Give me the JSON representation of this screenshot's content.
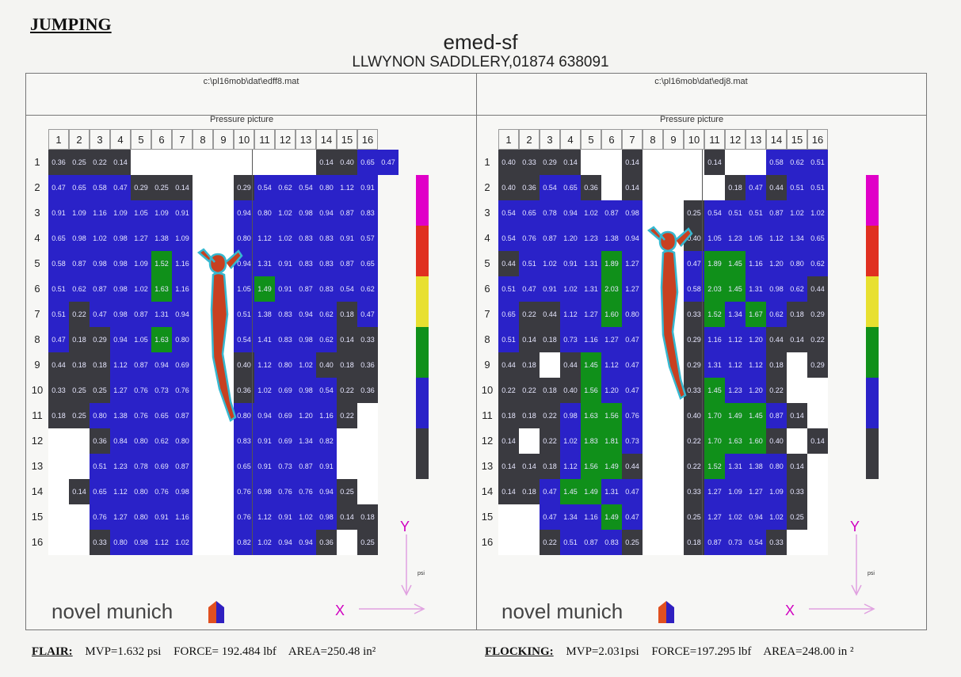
{
  "heading": "JUMPING",
  "title": "emed-sf",
  "subtitle": "LLWYNON SADDLERY,01874 638091",
  "panels": [
    {
      "path": "c:\\pl16mob\\dat\\edff8.mat",
      "pp_label": "Pressure picture",
      "brand": "novel munich",
      "x_label": "X",
      "y_label": "Y",
      "psi_label": "psi",
      "left": [
        [
          "0.36",
          "0.25",
          "0.22",
          "0.14",
          "",
          "",
          "",
          ""
        ],
        [
          "0.47",
          "0.65",
          "0.58",
          "0.47",
          "0.29",
          "0.25",
          "0.14",
          ""
        ],
        [
          "0.91",
          "1.09",
          "1.16",
          "1.09",
          "1.05",
          "1.09",
          "0.91",
          ""
        ],
        [
          "0.65",
          "0.98",
          "1.02",
          "0.98",
          "1.27",
          "1.38",
          "1.09",
          ""
        ],
        [
          "0.58",
          "0.87",
          "0.98",
          "0.98",
          "1.09",
          "1.52",
          "1.16",
          ""
        ],
        [
          "0.51",
          "0.62",
          "0.87",
          "0.98",
          "1.02",
          "1.63",
          "1.16",
          ""
        ],
        [
          "0.51",
          "0.22",
          "0.47",
          "0.98",
          "0.87",
          "1.31",
          "0.94",
          ""
        ],
        [
          "0.47",
          "0.18",
          "0.29",
          "0.94",
          "1.05",
          "1.63",
          "0.80",
          ""
        ],
        [
          "0.44",
          "0.18",
          "0.18",
          "1.12",
          "0.87",
          "0.94",
          "0.69",
          ""
        ],
        [
          "0.33",
          "0.25",
          "0.25",
          "1.27",
          "0.76",
          "0.73",
          "0.76",
          ""
        ],
        [
          "0.18",
          "0.25",
          "0.80",
          "1.38",
          "0.76",
          "0.65",
          "0.87",
          ""
        ],
        [
          "",
          "",
          "0.36",
          "0.84",
          "0.80",
          "0.62",
          "0.80",
          ""
        ],
        [
          "",
          "",
          "0.51",
          "1.23",
          "0.78",
          "0.69",
          "0.87",
          ""
        ],
        [
          "",
          "0.14",
          "0.65",
          "1.12",
          "0.80",
          "0.76",
          "0.98",
          ""
        ],
        [
          "",
          "",
          "0.76",
          "1.27",
          "0.80",
          "0.91",
          "1.16",
          ""
        ],
        [
          "",
          "",
          "0.33",
          "0.80",
          "0.98",
          "1.12",
          "1.02",
          ""
        ]
      ],
      "right": [
        [
          "",
          "",
          "",
          "",
          "",
          "0.14",
          "0.40",
          "0.65",
          "0.47"
        ],
        [
          "",
          "0.29",
          "0.54",
          "0.62",
          "0.54",
          "0.80",
          "1.12",
          "0.91"
        ],
        [
          "",
          "0.94",
          "0.80",
          "1.02",
          "0.98",
          "0.94",
          "0.87",
          "0.83"
        ],
        [
          "",
          "0.80",
          "1.12",
          "1.02",
          "0.83",
          "0.83",
          "0.91",
          "0.57"
        ],
        [
          "",
          "0.94",
          "1.31",
          "0.91",
          "0.83",
          "0.83",
          "0.87",
          "0.65"
        ],
        [
          "",
          "1.05",
          "1.49",
          "0.91",
          "0.87",
          "0.83",
          "0.54",
          "0.62"
        ],
        [
          "",
          "0.51",
          "1.38",
          "0.83",
          "0.94",
          "0.62",
          "0.18",
          "0.47"
        ],
        [
          "",
          "0.54",
          "1.41",
          "0.83",
          "0.98",
          "0.62",
          "0.14",
          "0.33"
        ],
        [
          "",
          "0.40",
          "1.12",
          "0.80",
          "1.02",
          "0.40",
          "0.18",
          "0.36"
        ],
        [
          "",
          "0.36",
          "1.02",
          "0.69",
          "0.98",
          "0.54",
          "0.22",
          "0.36"
        ],
        [
          "",
          "0.80",
          "0.94",
          "0.69",
          "1.20",
          "1.16",
          "0.22",
          ""
        ],
        [
          "",
          "0.83",
          "0.91",
          "0.69",
          "1.34",
          "0.82",
          "",
          ""
        ],
        [
          "",
          "0.65",
          "0.91",
          "0.73",
          "0.87",
          "0.91",
          "",
          ""
        ],
        [
          "",
          "0.76",
          "0.98",
          "0.76",
          "0.76",
          "0.94",
          "0.25",
          ""
        ],
        [
          "",
          "0.76",
          "1.12",
          "0.91",
          "1.02",
          "0.98",
          "0.14",
          "0.18"
        ],
        [
          "",
          "0.82",
          "1.02",
          "0.94",
          "0.94",
          "0.36",
          "",
          "0.25"
        ]
      ]
    },
    {
      "path": "c:\\pl16mob\\dat\\edj8.mat",
      "pp_label": "Pressure picture",
      "brand": "novel munich",
      "x_label": "X",
      "y_label": "Y",
      "psi_label": "psi",
      "left": [
        [
          "0.40",
          "0.33",
          "0.29",
          "0.14",
          "",
          "",
          "0.14",
          ""
        ],
        [
          "0.40",
          "0.36",
          "0.54",
          "0.65",
          "0.36",
          "",
          "0.14",
          ""
        ],
        [
          "0.54",
          "0.65",
          "0.78",
          "0.94",
          "1.02",
          "0.87",
          "0.98",
          ""
        ],
        [
          "0.54",
          "0.76",
          "0.87",
          "1.20",
          "1.23",
          "1.38",
          "0.94",
          ""
        ],
        [
          "0.44",
          "0.51",
          "1.02",
          "0.91",
          "1.31",
          "1.89",
          "1.27",
          ""
        ],
        [
          "0.51",
          "0.47",
          "0.91",
          "1.02",
          "1.31",
          "2.03",
          "1.27",
          ""
        ],
        [
          "0.65",
          "0.22",
          "0.44",
          "1.12",
          "1.27",
          "1.60",
          "0.80",
          ""
        ],
        [
          "0.51",
          "0.14",
          "0.18",
          "0.73",
          "1.16",
          "1.27",
          "0.47",
          ""
        ],
        [
          "0.44",
          "0.18",
          "",
          "0.44",
          "1.45",
          "1.12",
          "0.47",
          ""
        ],
        [
          "0.22",
          "0.22",
          "0.18",
          "0.40",
          "1.56",
          "1.20",
          "0.47",
          ""
        ],
        [
          "0.18",
          "0.18",
          "0.22",
          "0.98",
          "1.63",
          "1.56",
          "0.76",
          ""
        ],
        [
          "0.14",
          "",
          "0.22",
          "1.02",
          "1.83",
          "1.81",
          "0.73",
          ""
        ],
        [
          "0.14",
          "0.14",
          "0.18",
          "1.12",
          "1.56",
          "1.49",
          "0.44",
          ""
        ],
        [
          "0.14",
          "0.18",
          "0.47",
          "1.45",
          "1.49",
          "1.31",
          "0.47",
          ""
        ],
        [
          "",
          "",
          "0.47",
          "1.34",
          "1.16",
          "1.49",
          "0.47",
          ""
        ],
        [
          "",
          "",
          "0.22",
          "0.51",
          "0.87",
          "0.83",
          "0.25",
          ""
        ]
      ],
      "right": [
        [
          "",
          "",
          "0.14",
          "",
          "",
          "0.58",
          "0.62",
          "0.51"
        ],
        [
          "",
          "",
          "",
          "0.18",
          "0.47",
          "0.44",
          "0.51",
          "0.51"
        ],
        [
          "",
          "0.25",
          "0.54",
          "0.51",
          "0.51",
          "0.87",
          "1.02",
          "1.02"
        ],
        [
          "",
          "0.40",
          "1.05",
          "1.23",
          "1.05",
          "1.12",
          "1.34",
          "0.65"
        ],
        [
          "",
          "0.47",
          "1.89",
          "1.45",
          "1.16",
          "1.20",
          "0.80",
          "0.62"
        ],
        [
          "",
          "0.58",
          "2.03",
          "1.45",
          "1.31",
          "0.98",
          "0.62",
          "0.44"
        ],
        [
          "",
          "0.33",
          "1.52",
          "1.34",
          "1.67",
          "0.62",
          "0.18",
          "0.29"
        ],
        [
          "",
          "0.29",
          "1.16",
          "1.12",
          "1.20",
          "0.44",
          "0.14",
          "0.22"
        ],
        [
          "",
          "0.29",
          "1.31",
          "1.12",
          "1.12",
          "0.18",
          "",
          "0.29"
        ],
        [
          "",
          "0.33",
          "1.45",
          "1.23",
          "1.20",
          "0.22",
          "",
          ""
        ],
        [
          "",
          "0.40",
          "1.70",
          "1.49",
          "1.45",
          "0.87",
          "0.14",
          ""
        ],
        [
          "",
          "0.22",
          "1.70",
          "1.63",
          "1.60",
          "0.40",
          "",
          "0.14"
        ],
        [
          "",
          "0.22",
          "1.52",
          "1.31",
          "1.38",
          "0.80",
          "0.14",
          ""
        ],
        [
          "",
          "0.33",
          "1.27",
          "1.09",
          "1.27",
          "1.09",
          "0.33",
          ""
        ],
        [
          "",
          "0.25",
          "1.27",
          "1.02",
          "0.94",
          "1.02",
          "0.25",
          ""
        ],
        [
          "",
          "0.18",
          "0.87",
          "0.73",
          "0.54",
          "0.33",
          "",
          ""
        ]
      ]
    }
  ],
  "col_numbers": [
    "1",
    "2",
    "3",
    "4",
    "5",
    "6",
    "7",
    "8",
    "9",
    "10",
    "11",
    "12",
    "13",
    "14",
    "15",
    "16"
  ],
  "row_numbers": [
    "1",
    "2",
    "3",
    "4",
    "5",
    "6",
    "7",
    "8",
    "9",
    "10",
    "11",
    "12",
    "13",
    "14",
    "15",
    "16"
  ],
  "scale_colors": [
    "#e000c8",
    "#e03020",
    "#e8e030",
    "#10901a",
    "#2a22c8",
    "#3a3a40"
  ],
  "footer": {
    "left_label": "FLAIR:",
    "left_mvp": "MVP=1.632 psi",
    "left_force": "FORCE= 192.484 lbf",
    "left_area": "AREA=250.48 in²",
    "right_label": "FLOCKING:",
    "right_mvp": "MVP=2.031psi",
    "right_force": "FORCE=197.295 lbf",
    "right_area": "AREA=248.00 in ²"
  }
}
